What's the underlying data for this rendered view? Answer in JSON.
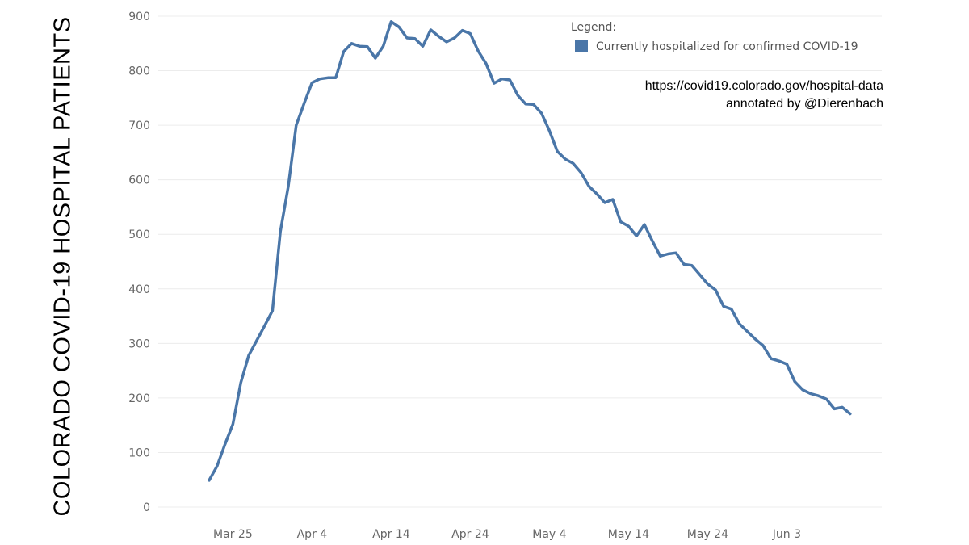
{
  "chart_data": {
    "type": "line",
    "title": "",
    "ylabel": "COLORADO COVID-19 HOSPITAL PATIENTS",
    "xlabel": "",
    "ylim": [
      0,
      900
    ],
    "yticks": [
      0,
      100,
      200,
      300,
      400,
      500,
      600,
      700,
      800,
      900
    ],
    "x_start": "2020-03-22",
    "x_end": "2020-06-11",
    "xticks": [
      {
        "date": "2020-03-25",
        "label": "Mar 25"
      },
      {
        "date": "2020-04-04",
        "label": "Apr 4"
      },
      {
        "date": "2020-04-14",
        "label": "Apr 14"
      },
      {
        "date": "2020-04-24",
        "label": "Apr 24"
      },
      {
        "date": "2020-05-04",
        "label": "May 4"
      },
      {
        "date": "2020-05-14",
        "label": "May 14"
      },
      {
        "date": "2020-05-24",
        "label": "May 24"
      },
      {
        "date": "2020-06-03",
        "label": "Jun 3"
      }
    ],
    "grid": true,
    "legend": {
      "title": "Legend:",
      "placement": "top-right"
    },
    "series": [
      {
        "name": "Currently hospitalized for confirmed COVID-19",
        "color": "#4a76a8",
        "values": [
          49,
          75,
          115,
          152,
          228,
          278,
          305,
          332,
          360,
          505,
          588,
          700,
          740,
          778,
          785,
          787,
          787,
          835,
          850,
          845,
          844,
          823,
          845,
          890,
          880,
          860,
          859,
          845,
          875,
          863,
          853,
          860,
          874,
          868,
          836,
          813,
          777,
          785,
          783,
          755,
          739,
          738,
          722,
          690,
          652,
          638,
          630,
          613,
          588,
          574,
          558,
          564,
          523,
          515,
          497,
          518,
          488,
          460,
          464,
          466,
          445,
          443,
          426,
          409,
          398,
          368,
          363,
          336,
          322,
          308,
          296,
          272,
          268,
          262,
          230,
          215,
          208,
          204,
          198,
          180,
          183,
          171
        ]
      }
    ],
    "annotation": {
      "line1": "https://covid19.colorado.gov/hospital-data",
      "line2": "annotated by @Dierenbach"
    }
  }
}
